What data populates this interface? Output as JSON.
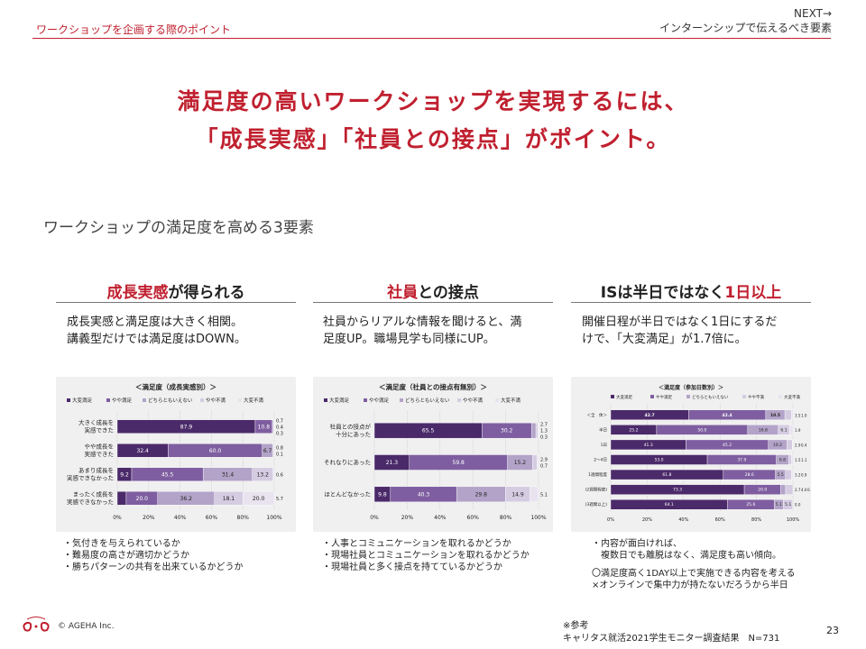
{
  "header": {
    "title": "ワークショップを企画する際のポイント",
    "next_label": "NEXT→",
    "next_title": "インターンシップで伝えるべき要素"
  },
  "headline": {
    "line1": "満足度の高いワークショップを実現するには、",
    "line2": "「成長実感」「社員との接点」がポイント。"
  },
  "subhead": "ワークショップの満足度を高める3要素",
  "columns": [
    {
      "title_red": "成長実感",
      "title_rest": "が得られる",
      "desc1": "成長実感と満足度は大きく相関。",
      "desc2": "講義型だけでは満足度はDOWN。",
      "notes": [
        "・気付きを与えられているか",
        "・難易度の高さが適切かどうか",
        "・勝ちパターンの共有を出来ているかどうか"
      ]
    },
    {
      "title_red": "社員",
      "title_rest": "との接点",
      "desc1": "社員からリアルな情報を聞けると、満",
      "desc2": "足度UP。職場見学も同様にUP。",
      "notes": [
        "・人事とコミュニケーションを取れるかどうか",
        "・現場社員とコミュニケーションを取れるかどうか",
        "・現場社員と多く接点を持てているかどうか"
      ]
    },
    {
      "title_black": "ISは半日ではなく",
      "title_red": "1日以上",
      "desc1": "開催日程が半日ではなく1日にするだ",
      "desc2": "けで、「大変満足」が1.7倍に。",
      "notes": [
        "・内容が面白ければ、",
        "　複数日でも離脱はなく、満足度も高い傾向。",
        "",
        "〇満足度高く1DAY以上で実施できる内容を考える",
        "×オンラインで集中力が持たないだろうから半日"
      ]
    }
  ],
  "footer": {
    "copyright": "© AGEHA Inc.",
    "source1": "※参考",
    "source2": "キャリタス就活2021学生モニター調査結果　N=731",
    "page": "23"
  },
  "legend": [
    "大変満足",
    "やや満足",
    "どちらともいえない",
    "やや不満",
    "大変不満"
  ],
  "colors": [
    "#4b2a6a",
    "#7e5ea0",
    "#b3a3c8",
    "#d5cce2",
    "#e8e3ef"
  ],
  "chart_data": [
    {
      "type": "bar",
      "stacked": "horizontal-100",
      "title": "＜満足度（成長実感別）＞",
      "categories": [
        "大きく成長を実感できた",
        "やや成長を実感できた",
        "あまり成長を実感できなかった",
        "まったく成長を実感できなかった"
      ],
      "category_lines": [
        [
          "大きく成長を",
          "実感できた"
        ],
        [
          "やや成長を",
          "実感できた"
        ],
        [
          "あまり成長を",
          "実感できなかった"
        ],
        [
          "まったく成長を",
          "実感できなかった"
        ]
      ],
      "series": [
        {
          "name": "大変満足",
          "values": [
            87.9,
            32.4,
            9.2,
            5.7
          ]
        },
        {
          "name": "やや満足",
          "values": [
            10.8,
            60.0,
            45.5,
            20.0
          ]
        },
        {
          "name": "どちらともいえない",
          "values": [
            0.7,
            6.7,
            31.4,
            36.2
          ]
        },
        {
          "name": "やや不満",
          "values": [
            0.4,
            0.8,
            13.2,
            18.1
          ]
        },
        {
          "name": "大変不満",
          "values": [
            0.3,
            0.1,
            0.6,
            20.0
          ]
        }
      ],
      "xticks": [
        "0%",
        "20%",
        "40%",
        "60%",
        "80%",
        "100%"
      ]
    },
    {
      "type": "bar",
      "stacked": "horizontal-100",
      "title": "＜満足度（社員との接点有無別）＞",
      "categories": [
        "社員との接点が十分にあった",
        "それなりにあった",
        "ほとんどなかった"
      ],
      "category_lines": [
        [
          "社員との接点が",
          "十分にあった"
        ],
        [
          "それなりにあった"
        ],
        [
          "ほとんどなかった"
        ]
      ],
      "series": [
        {
          "name": "大変満足",
          "values": [
            65.5,
            21.3,
            9.8
          ]
        },
        {
          "name": "やや満足",
          "values": [
            30.2,
            59.8,
            40.3
          ]
        },
        {
          "name": "どちらともいえない",
          "values": [
            2.7,
            15.2,
            29.8
          ]
        },
        {
          "name": "やや不満",
          "values": [
            1.3,
            2.9,
            14.9
          ]
        },
        {
          "name": "大変不満",
          "values": [
            0.3,
            0.7,
            5.1
          ]
        }
      ],
      "xticks": [
        "0%",
        "20%",
        "40%",
        "60%",
        "80%",
        "100%"
      ]
    },
    {
      "type": "bar",
      "stacked": "horizontal-100",
      "title": "＜満足度（参加日数別）＞",
      "categories": [
        "＜全　体＞",
        "半日",
        "1日",
        "2～4日",
        "1週間程度",
        "(2週間程度)",
        "(3週間以上)"
      ],
      "category_lines": [
        [
          "＜全　体＞"
        ],
        [
          "半日"
        ],
        [
          "1日"
        ],
        [
          "2～4日"
        ],
        [
          "1週間程度"
        ],
        [
          "(2週間程度)"
        ],
        [
          "(3週間以上)"
        ]
      ],
      "series": [
        {
          "name": "大変満足",
          "values": [
            42.7,
            25.2,
            41.3,
            53.0,
            61.8,
            73.3,
            64.1
          ]
        },
        {
          "name": "やや満足",
          "values": [
            42.4,
            50.0,
            45.2,
            37.9,
            28.6,
            20.0,
            25.6
          ]
        },
        {
          "name": "どちらともいえない",
          "values": [
            10.5,
            16.8,
            10.2,
            6.8,
            5.5,
            2.7,
            5.1
          ]
        },
        {
          "name": "やや不満",
          "values": [
            3.5,
            6.1,
            2.9,
            1.5,
            3.2,
            4.0,
            5.1
          ]
        },
        {
          "name": "大変不満",
          "values": [
            1.0,
            1.9,
            0.4,
            1.1,
            0.9,
            0.0,
            0.0
          ]
        }
      ],
      "xticks": [
        "0%",
        "20%",
        "40%",
        "60%",
        "80%",
        "100%"
      ]
    }
  ]
}
